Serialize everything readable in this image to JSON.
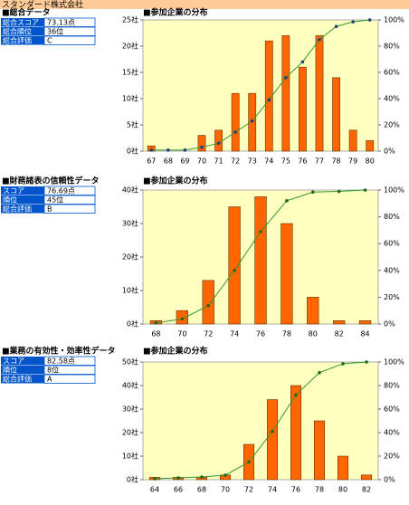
{
  "header": {
    "title": "スタンダード株式会社"
  },
  "sections": [
    {
      "title": "■総合データ",
      "rows": [
        [
          "総合スコア",
          "73.13点"
        ],
        [
          "総合順位",
          "36位"
        ],
        [
          "総合評価",
          "C"
        ]
      ]
    },
    {
      "title": "■財務諸表の信頼性データ",
      "rows": [
        [
          "スコア",
          "76.69点"
        ],
        [
          "順位",
          "45位"
        ],
        [
          "総合評価",
          "B"
        ]
      ]
    },
    {
      "title": "■業務の有効性・効率性データ",
      "rows": [
        [
          "スコア",
          "82.58点"
        ],
        [
          "順位",
          "8位"
        ],
        [
          "総合評価",
          "A"
        ]
      ]
    }
  ],
  "chart_data": [
    {
      "type": "bar",
      "title": "■参加企業の分布",
      "categories": [
        "67",
        "68",
        "69",
        "70",
        "71",
        "72",
        "73",
        "74",
        "75",
        "76",
        "77",
        "78",
        "79",
        "80"
      ],
      "series": [
        {
          "color": "#ff6600",
          "values": [
            1,
            0,
            0,
            3,
            4,
            11,
            11,
            21,
            22,
            16,
            22,
            14,
            4,
            2
          ]
        },
        {
          "type": "line",
          "axis": "y2",
          "color": "#339933",
          "marker_color": "#1f3f7a",
          "values": [
            0.8,
            0.8,
            0.8,
            3,
            6,
            14.5,
            23,
            39,
            56,
            68,
            85,
            95,
            98.5,
            100
          ]
        }
      ],
      "ylim": [
        0,
        25
      ],
      "yticks": [
        {
          "value": 0,
          "label": "0社"
        },
        {
          "value": 5,
          "label": "5社"
        },
        {
          "value": 10,
          "label": "10社"
        },
        {
          "value": 15,
          "label": "15社"
        },
        {
          "value": 20,
          "label": "20社"
        },
        {
          "value": 25,
          "label": "25社"
        }
      ],
      "y2lim": [
        0,
        100
      ],
      "y2ticks": [
        {
          "value": 0,
          "label": "0%"
        },
        {
          "value": 20,
          "label": "20%"
        },
        {
          "value": 40,
          "label": "40%"
        },
        {
          "value": 60,
          "label": "60%"
        },
        {
          "value": 80,
          "label": "80%"
        },
        {
          "value": 100,
          "label": "100%"
        }
      ]
    },
    {
      "type": "bar",
      "title": "■参加企業の分布",
      "categories": [
        "68",
        "70",
        "72",
        "74",
        "76",
        "78",
        "80",
        "82",
        "84"
      ],
      "series": [
        {
          "color": "#ff6600",
          "values": [
            1,
            4,
            13,
            35,
            38,
            30,
            8,
            1,
            1
          ]
        },
        {
          "type": "line",
          "axis": "y2",
          "color": "#339933",
          "marker_color": "#1f6a1f",
          "values": [
            0.8,
            3.8,
            13.7,
            40,
            69,
            92,
            98.5,
            99,
            100
          ]
        }
      ],
      "ylim": [
        0,
        40
      ],
      "yticks": [
        {
          "value": 0,
          "label": "0社"
        },
        {
          "value": 10,
          "label": "10社"
        },
        {
          "value": 20,
          "label": "20社"
        },
        {
          "value": 30,
          "label": "30社"
        },
        {
          "value": 40,
          "label": "40社"
        }
      ],
      "y2lim": [
        0,
        100
      ],
      "y2ticks": [
        {
          "value": 0,
          "label": "0%"
        },
        {
          "value": 20,
          "label": "20%"
        },
        {
          "value": 40,
          "label": "40%"
        },
        {
          "value": 60,
          "label": "60%"
        },
        {
          "value": 80,
          "label": "80%"
        },
        {
          "value": 100,
          "label": "100%"
        }
      ]
    },
    {
      "type": "bar",
      "title": "■参加企業の分布",
      "categories": [
        "64",
        "66",
        "68",
        "70",
        "72",
        "74",
        "76",
        "78",
        "80",
        "82"
      ],
      "series": [
        {
          "color": "#ff6600",
          "values": [
            1,
            1,
            1,
            2,
            15,
            34,
            40,
            25,
            10,
            2
          ]
        },
        {
          "type": "line",
          "axis": "y2",
          "color": "#339933",
          "marker_color": "#1f6a1f",
          "values": [
            0.8,
            1.5,
            2.3,
            3.8,
            15,
            41,
            72,
            91,
            98.5,
            100
          ]
        }
      ],
      "ylim": [
        0,
        50
      ],
      "yticks": [
        {
          "value": 0,
          "label": "0社"
        },
        {
          "value": 10,
          "label": "10社"
        },
        {
          "value": 20,
          "label": "20社"
        },
        {
          "value": 30,
          "label": "30社"
        },
        {
          "value": 40,
          "label": "40社"
        },
        {
          "value": 50,
          "label": "50社"
        }
      ],
      "y2lim": [
        0,
        100
      ],
      "y2ticks": [
        {
          "value": 0,
          "label": "0%"
        },
        {
          "value": 20,
          "label": "20%"
        },
        {
          "value": 40,
          "label": "40%"
        },
        {
          "value": 60,
          "label": "60%"
        },
        {
          "value": 80,
          "label": "80%"
        },
        {
          "value": 100,
          "label": "100%"
        }
      ]
    }
  ]
}
